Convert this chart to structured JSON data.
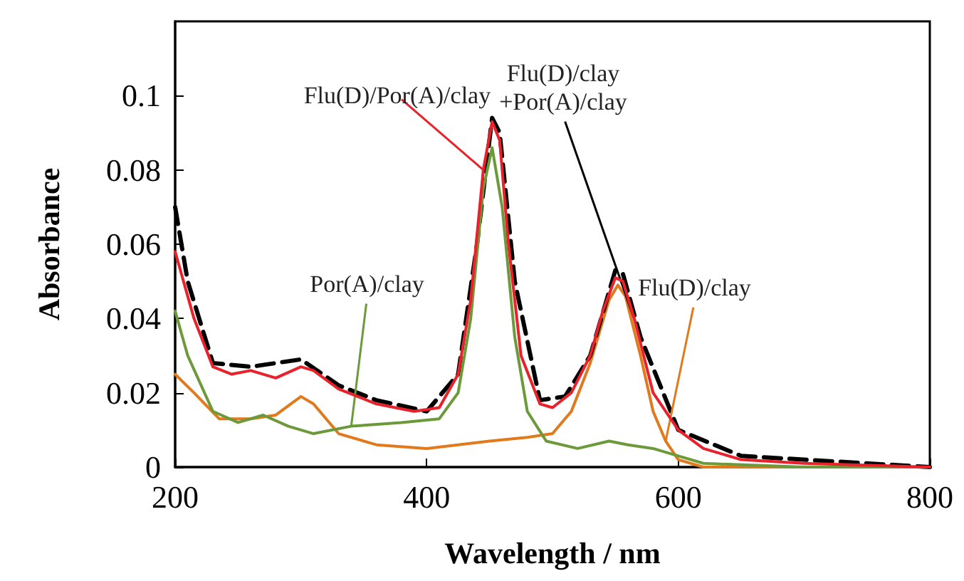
{
  "chart_data": {
    "type": "line",
    "xlabel": "Wavelength / nm",
    "ylabel": "Absorbance",
    "xlim": [
      200,
      800
    ],
    "xticks": [
      200,
      400,
      600,
      800
    ],
    "ylim": [
      0,
      0.12
    ],
    "yticks": [
      0,
      0.02,
      0.04,
      0.06,
      0.08,
      0.1
    ],
    "grid": false,
    "legend": false,
    "marker": "none",
    "series": [
      {
        "name": "Flu(D)/Por(A)/clay",
        "color": "#e8212b",
        "line_style": "solid",
        "x": [
          200,
          215,
          230,
          245,
          260,
          280,
          300,
          310,
          330,
          360,
          390,
          410,
          425,
          435,
          445,
          452,
          458,
          465,
          475,
          490,
          500,
          515,
          530,
          540,
          550,
          556,
          565,
          580,
          600,
          620,
          650,
          700,
          800
        ],
        "values": [
          0.058,
          0.04,
          0.027,
          0.025,
          0.026,
          0.024,
          0.027,
          0.026,
          0.021,
          0.017,
          0.015,
          0.016,
          0.025,
          0.045,
          0.08,
          0.093,
          0.088,
          0.06,
          0.03,
          0.017,
          0.016,
          0.02,
          0.03,
          0.042,
          0.051,
          0.05,
          0.04,
          0.02,
          0.01,
          0.005,
          0.002,
          0.001,
          0
        ]
      },
      {
        "name": "Flu(D)/clay\n+Por(A)/clay",
        "color": "#000000",
        "line_style": "dashed",
        "x": [
          200,
          210,
          230,
          260,
          300,
          330,
          360,
          400,
          425,
          440,
          452,
          458,
          470,
          490,
          510,
          530,
          550,
          556,
          570,
          600,
          650,
          800
        ],
        "values": [
          0.07,
          0.05,
          0.028,
          0.027,
          0.029,
          0.022,
          0.018,
          0.015,
          0.025,
          0.06,
          0.094,
          0.09,
          0.05,
          0.018,
          0.019,
          0.03,
          0.053,
          0.052,
          0.035,
          0.01,
          0.003,
          0
        ]
      },
      {
        "name": "Por(A)/clay",
        "color": "#6c9a3a",
        "line_style": "solid",
        "x": [
          200,
          210,
          230,
          250,
          270,
          290,
          310,
          340,
          380,
          410,
          425,
          435,
          445,
          452,
          460,
          470,
          480,
          495,
          520,
          545,
          560,
          580,
          600,
          620,
          700,
          800
        ],
        "values": [
          0.042,
          0.03,
          0.015,
          0.012,
          0.014,
          0.011,
          0.009,
          0.011,
          0.012,
          0.013,
          0.02,
          0.04,
          0.075,
          0.086,
          0.07,
          0.035,
          0.015,
          0.007,
          0.005,
          0.007,
          0.006,
          0.005,
          0.003,
          0.001,
          0,
          0
        ]
      },
      {
        "name": "Flu(D)/clay",
        "color": "#e07a1c",
        "line_style": "solid",
        "x": [
          200,
          215,
          235,
          260,
          280,
          300,
          310,
          330,
          360,
          400,
          450,
          480,
          500,
          515,
          530,
          545,
          552,
          558,
          570,
          580,
          590,
          600,
          620,
          800
        ],
        "values": [
          0.025,
          0.02,
          0.013,
          0.013,
          0.014,
          0.019,
          0.017,
          0.009,
          0.006,
          0.005,
          0.007,
          0.008,
          0.009,
          0.015,
          0.028,
          0.045,
          0.049,
          0.046,
          0.03,
          0.015,
          0.007,
          0.002,
          0,
          0
        ]
      }
    ]
  }
}
